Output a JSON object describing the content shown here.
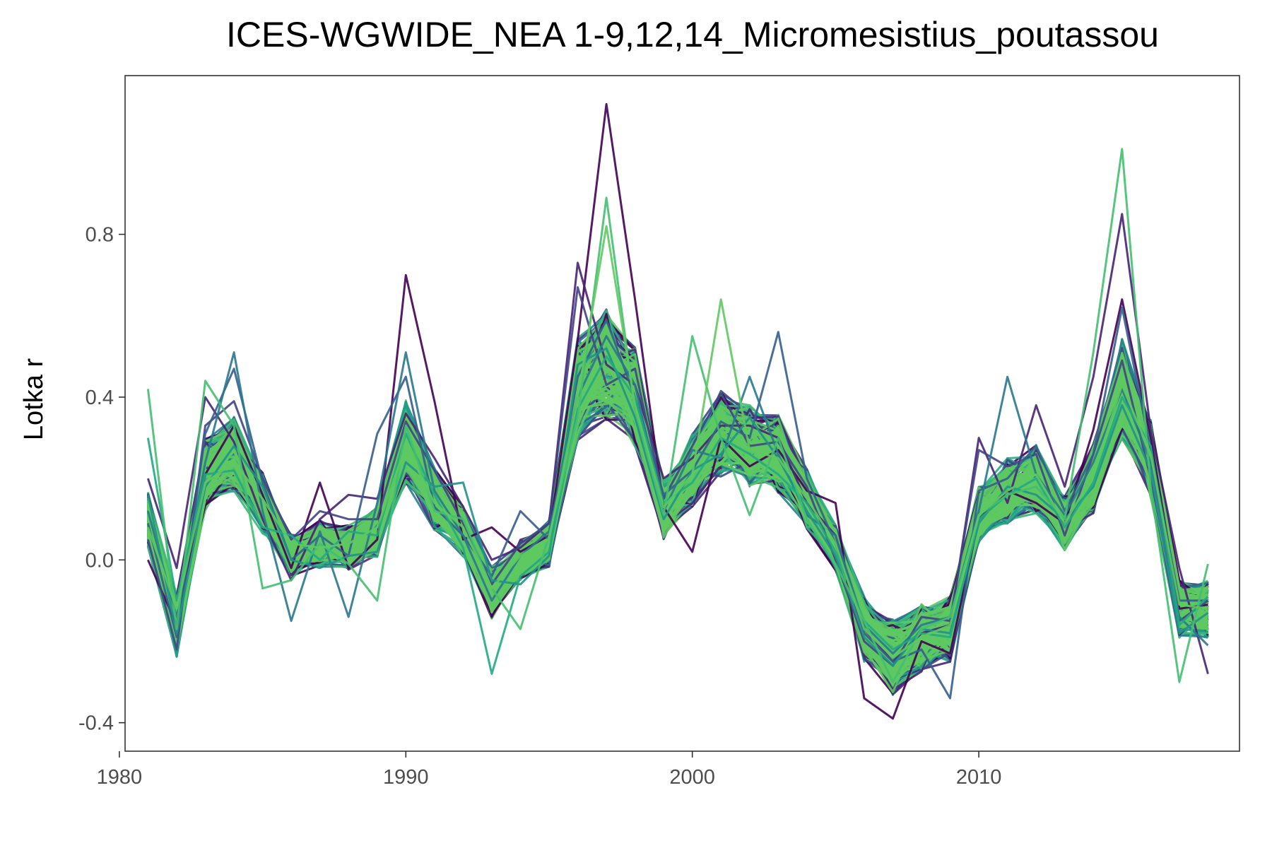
{
  "chart_data": {
    "type": "line",
    "title": "ICES-WGWIDE_NEA 1-9,12,14_Micromesistius_poutassou",
    "xlabel": "",
    "ylabel": "Lotka r",
    "xlim": [
      1980.2,
      2019.1
    ],
    "ylim": [
      -0.47,
      1.19
    ],
    "x_ticks": [
      1980,
      1990,
      2000,
      2010
    ],
    "x_tick_labels": [
      "1980",
      "1990",
      "2000",
      "2010"
    ],
    "y_ticks": [
      -0.4,
      0.0,
      0.4,
      0.8
    ],
    "y_tick_labels": [
      "-0.4",
      "0.0",
      "0.4",
      "0.8"
    ],
    "grid": false,
    "legend": "none",
    "x": [
      1981,
      1982,
      1983,
      1984,
      1985,
      1986,
      1987,
      1988,
      1989,
      1990,
      1991,
      1992,
      1993,
      1994,
      1995,
      1996,
      1997,
      1998,
      1999,
      2000,
      2001,
      2002,
      2003,
      2004,
      2005,
      2006,
      2007,
      2008,
      2009,
      2010,
      2011,
      2012,
      2013,
      2014,
      2015,
      2016,
      2017,
      2018
    ],
    "central_estimate": [
      0.1,
      -0.16,
      0.21,
      0.26,
      0.14,
      0.01,
      0.04,
      0.03,
      0.07,
      0.29,
      0.15,
      0.07,
      -0.08,
      0.0,
      0.04,
      0.42,
      0.48,
      0.4,
      0.12,
      0.22,
      0.31,
      0.28,
      0.26,
      0.15,
      0.03,
      -0.17,
      -0.24,
      -0.19,
      -0.17,
      0.11,
      0.17,
      0.2,
      0.09,
      0.2,
      0.42,
      0.25,
      -0.12,
      -0.12
    ],
    "series": [
      {
        "color": "#440154",
        "values": [
          0.0,
          -0.16,
          0.21,
          0.33,
          0.16,
          -0.02,
          0.19,
          -0.02,
          0.05,
          0.7,
          0.39,
          0.05,
          0.08,
          0.02,
          0.06,
          0.54,
          1.12,
          0.64,
          0.13,
          0.02,
          0.3,
          0.23,
          0.27,
          0.17,
          0.14,
          -0.34,
          -0.39,
          -0.2,
          -0.23,
          0.1,
          0.17,
          0.14,
          0.09,
          0.32,
          0.64,
          0.3,
          -0.12,
          -0.11
        ]
      },
      {
        "color": "#482475",
        "values": [
          0.2,
          -0.02,
          0.4,
          0.29,
          0.1,
          -0.05,
          0.1,
          0.16,
          0.15,
          0.36,
          0.25,
          0.13,
          0.0,
          0.03,
          0.09,
          0.73,
          0.48,
          0.43,
          0.2,
          0.25,
          0.33,
          0.33,
          0.3,
          0.14,
          0.06,
          -0.17,
          -0.25,
          -0.18,
          -0.16,
          0.3,
          0.14,
          0.38,
          0.18,
          0.45,
          0.85,
          0.32,
          -0.02,
          -0.28
        ]
      },
      {
        "color": "#414487",
        "values": [
          0.05,
          -0.22,
          0.33,
          0.39,
          0.2,
          0.05,
          0.12,
          0.1,
          0.1,
          0.34,
          0.22,
          0.09,
          -0.06,
          0.04,
          0.09,
          0.67,
          0.43,
          0.47,
          0.15,
          0.28,
          0.41,
          0.28,
          0.29,
          0.18,
          0.0,
          -0.2,
          -0.26,
          -0.14,
          -0.15,
          0.27,
          0.23,
          0.26,
          0.06,
          0.26,
          0.49,
          0.2,
          -0.15,
          -0.1
        ]
      },
      {
        "color": "#355f8d",
        "values": [
          0.09,
          -0.19,
          0.31,
          0.47,
          0.19,
          0.0,
          0.06,
          0.01,
          0.31,
          0.45,
          0.13,
          0.06,
          -0.04,
          0.12,
          0.05,
          0.45,
          0.59,
          0.4,
          0.16,
          0.22,
          0.34,
          0.3,
          0.56,
          0.2,
          0.04,
          -0.18,
          -0.25,
          -0.22,
          -0.34,
          0.17,
          0.2,
          0.28,
          0.12,
          0.26,
          0.62,
          0.27,
          -0.1,
          -0.1
        ]
      },
      {
        "color": "#2a788e",
        "values": [
          0.12,
          -0.14,
          0.24,
          0.51,
          0.12,
          -0.15,
          0.07,
          -0.14,
          0.14,
          0.51,
          0.17,
          0.06,
          -0.1,
          0.01,
          0.07,
          0.4,
          0.55,
          0.43,
          0.12,
          0.27,
          0.25,
          0.45,
          0.26,
          0.11,
          0.06,
          -0.16,
          -0.23,
          -0.16,
          -0.14,
          0.12,
          0.45,
          0.21,
          0.11,
          0.24,
          0.42,
          0.24,
          -0.14,
          -0.21
        ]
      },
      {
        "color": "#21918c",
        "values": [
          0.16,
          -0.18,
          0.18,
          0.28,
          0.18,
          0.0,
          -0.02,
          0.01,
          0.02,
          0.24,
          0.18,
          0.19,
          -0.05,
          -0.06,
          0.01,
          0.48,
          0.52,
          0.35,
          0.1,
          0.22,
          0.26,
          0.35,
          0.25,
          0.12,
          0.01,
          -0.19,
          -0.26,
          -0.17,
          -0.18,
          0.09,
          0.18,
          0.16,
          0.1,
          0.18,
          0.38,
          0.22,
          -0.18,
          -0.13
        ]
      },
      {
        "color": "#22a884",
        "values": [
          0.3,
          -0.1,
          0.21,
          0.22,
          0.08,
          0.06,
          0.0,
          0.07,
          0.06,
          0.31,
          0.16,
          0.03,
          -0.28,
          -0.04,
          0.02,
          0.37,
          0.5,
          0.4,
          0.14,
          0.19,
          0.3,
          0.26,
          0.21,
          0.14,
          0.02,
          -0.15,
          -0.22,
          -0.18,
          -0.19,
          0.1,
          0.16,
          0.2,
          0.08,
          0.19,
          0.4,
          0.28,
          -0.16,
          -0.09
        ]
      },
      {
        "color": "#44bf70",
        "values": [
          0.42,
          -0.17,
          0.44,
          0.33,
          -0.07,
          -0.05,
          0.04,
          -0.01,
          -0.1,
          0.33,
          0.12,
          0.1,
          -0.07,
          -0.17,
          0.06,
          0.35,
          0.89,
          0.37,
          0.11,
          0.55,
          0.3,
          0.11,
          0.3,
          0.1,
          -0.01,
          -0.15,
          -0.3,
          -0.17,
          -0.14,
          0.11,
          0.16,
          0.18,
          0.1,
          0.51,
          1.01,
          0.18,
          -0.3,
          -0.01
        ]
      },
      {
        "color": "#5ec962",
        "values": [
          0.08,
          -0.12,
          0.19,
          0.24,
          0.15,
          0.04,
          0.03,
          0.04,
          0.08,
          0.28,
          0.14,
          0.08,
          -0.07,
          0.01,
          0.05,
          0.4,
          0.82,
          0.38,
          0.13,
          0.21,
          0.64,
          0.27,
          0.25,
          0.15,
          0.04,
          -0.17,
          -0.24,
          -0.19,
          -0.16,
          0.11,
          0.17,
          0.21,
          0.09,
          0.21,
          0.43,
          0.26,
          -0.11,
          -0.12
        ]
      }
    ]
  }
}
